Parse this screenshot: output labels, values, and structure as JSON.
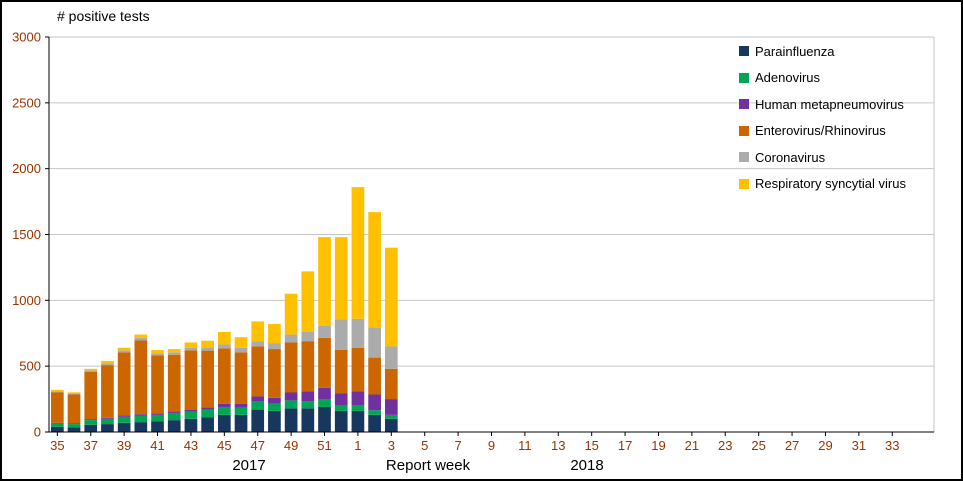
{
  "chart_data": {
    "type": "bar",
    "subtype": "stacked",
    "title": "# positive tests",
    "xlabel": "Report week",
    "ylim": [
      0,
      3000
    ],
    "yticks": [
      0,
      500,
      1000,
      1500,
      2000,
      2500,
      3000
    ],
    "grid": true,
    "legend_position": "top-right-inside",
    "x_slots": 53,
    "x_tick_labels": [
      "35",
      "37",
      "39",
      "41",
      "43",
      "45",
      "47",
      "49",
      "51",
      "1",
      "3",
      "5",
      "7",
      "9",
      "11",
      "13",
      "15",
      "17",
      "19",
      "21",
      "23",
      "25",
      "27",
      "29",
      "31",
      "33"
    ],
    "x_tick_slots": [
      0,
      2,
      4,
      6,
      8,
      10,
      12,
      14,
      16,
      18,
      20,
      22,
      24,
      26,
      28,
      30,
      32,
      34,
      36,
      38,
      40,
      42,
      44,
      46,
      48,
      50
    ],
    "year_labels": [
      {
        "label": "2017"
      },
      {
        "label": "2018"
      }
    ],
    "weeks": [
      "35",
      "36",
      "37",
      "38",
      "39",
      "40",
      "41",
      "42",
      "43",
      "44",
      "45",
      "46",
      "47",
      "48",
      "49",
      "50",
      "51",
      "52",
      "1",
      "2",
      "3"
    ],
    "tick_label_color": "#993300",
    "grid_color": "#C6C6C6",
    "axis_color": "#000000",
    "series": [
      {
        "name": "Parainfluenza",
        "color": "#17375E",
        "values": [
          40,
          35,
          55,
          60,
          70,
          75,
          80,
          90,
          100,
          110,
          130,
          130,
          170,
          160,
          180,
          180,
          190,
          160,
          160,
          130,
          100
        ]
      },
      {
        "name": "Adenovirus",
        "color": "#00A651",
        "values": [
          25,
          25,
          35,
          40,
          45,
          50,
          50,
          55,
          55,
          60,
          60,
          55,
          60,
          55,
          60,
          55,
          55,
          40,
          40,
          35,
          30
        ]
      },
      {
        "name": "Human metapneumovirus",
        "color": "#7030A0",
        "values": [
          5,
          5,
          8,
          8,
          10,
          10,
          12,
          12,
          15,
          18,
          25,
          30,
          40,
          45,
          60,
          75,
          90,
          95,
          110,
          120,
          120
        ]
      },
      {
        "name": "Enterovirus/Rhinovirus",
        "color": "#CC6600",
        "values": [
          230,
          220,
          360,
          400,
          480,
          560,
          440,
          430,
          450,
          430,
          420,
          390,
          380,
          370,
          380,
          380,
          380,
          330,
          330,
          280,
          230
        ]
      },
      {
        "name": "Coronavirus",
        "color": "#ABABAB",
        "values": [
          10,
          8,
          10,
          12,
          15,
          20,
          15,
          18,
          20,
          25,
          30,
          35,
          40,
          45,
          60,
          70,
          90,
          230,
          220,
          230,
          170
        ]
      },
      {
        "name": "Respiratory syncytial virus",
        "color": "#FFC000",
        "values": [
          10,
          8,
          12,
          20,
          20,
          25,
          25,
          25,
          40,
          50,
          95,
          80,
          150,
          145,
          310,
          460,
          675,
          625,
          1000,
          875,
          750
        ]
      }
    ]
  }
}
